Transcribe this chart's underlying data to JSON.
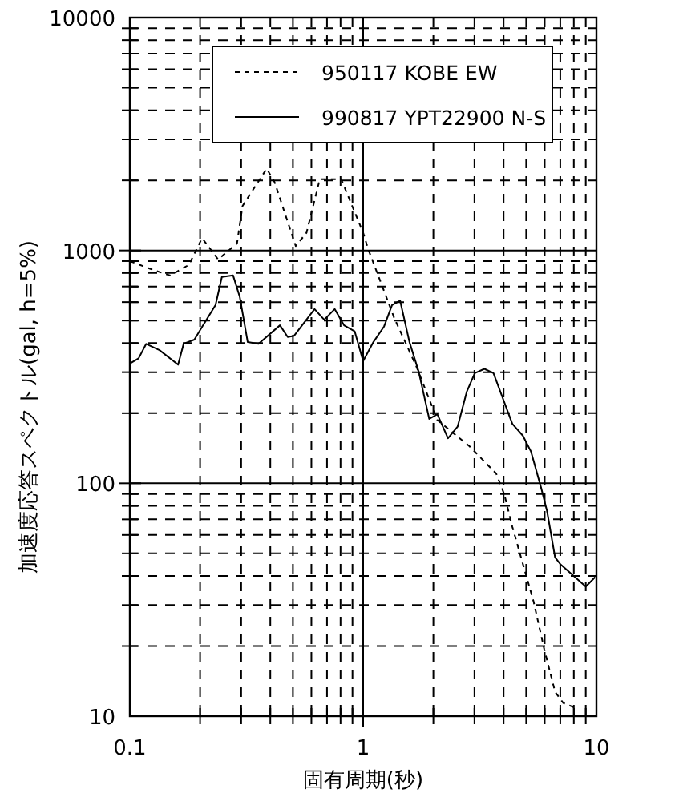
{
  "chart_data": {
    "type": "line",
    "xlabel": "固有周期(秒)",
    "ylabel": "加速度応答スペクトル(gal, h=5%)",
    "log": "xy",
    "grid": true,
    "legend": "top",
    "xlim": [
      0.1,
      10
    ],
    "xticks": [
      0.1,
      1,
      10
    ],
    "ylim": [
      10,
      10000
    ],
    "yticks": [
      10,
      100,
      1000,
      10000
    ],
    "series": [
      {
        "name": "950117 KOBE EW",
        "color": "#000000",
        "line_style": "dotted",
        "x": [
          0.1,
          0.127,
          0.149,
          0.179,
          0.204,
          0.239,
          0.288,
          0.304,
          0.386,
          0.417,
          0.514,
          0.572,
          0.652,
          0.805,
          1.0,
          1.05,
          1.36,
          1.69,
          2.08,
          2.86,
          3.72,
          4.03,
          4.36,
          4.84,
          5.38,
          5.98,
          6.65,
          7.2,
          8.2
        ],
        "values": [
          900,
          822,
          781,
          867,
          1130,
          915,
          1072,
          1552,
          2244,
          1968,
          1044,
          1192,
          2023,
          2023,
          1192,
          1016,
          512,
          318,
          187,
          144,
          110,
          89.5,
          65,
          45,
          31,
          19.3,
          12.7,
          11.4,
          10.8
        ]
      },
      {
        "name": "990817 YPT22900 N-S",
        "color": "#000000",
        "line_style": "solid",
        "x": [
          0.1,
          0.109,
          0.1175,
          0.134,
          0.161,
          0.17,
          0.189,
          0.215,
          0.233,
          0.248,
          0.277,
          0.296,
          0.32,
          0.356,
          0.44,
          0.475,
          0.506,
          0.619,
          0.681,
          0.755,
          0.828,
          0.92,
          1.0,
          1.106,
          1.23,
          1.33,
          1.44,
          1.58,
          1.73,
          1.92,
          2.08,
          2.31,
          2.54,
          2.78,
          3.01,
          3.31,
          3.62,
          4.36,
          4.84,
          5.24,
          5.82,
          6.14,
          6.65,
          7.0,
          9.0,
          9.87
        ],
        "values": [
          327,
          344,
          397,
          373,
          323,
          397,
          414,
          512,
          583,
          769,
          781,
          631,
          404,
          397,
          477,
          425,
          430,
          560,
          504,
          560,
          477,
          449,
          335,
          404,
          472,
          583,
          609,
          404,
          302,
          189,
          198,
          156,
          175,
          247,
          297,
          310,
          297,
          180,
          160,
          137,
          94,
          76,
          48,
          45,
          36,
          39.5
        ]
      }
    ]
  }
}
